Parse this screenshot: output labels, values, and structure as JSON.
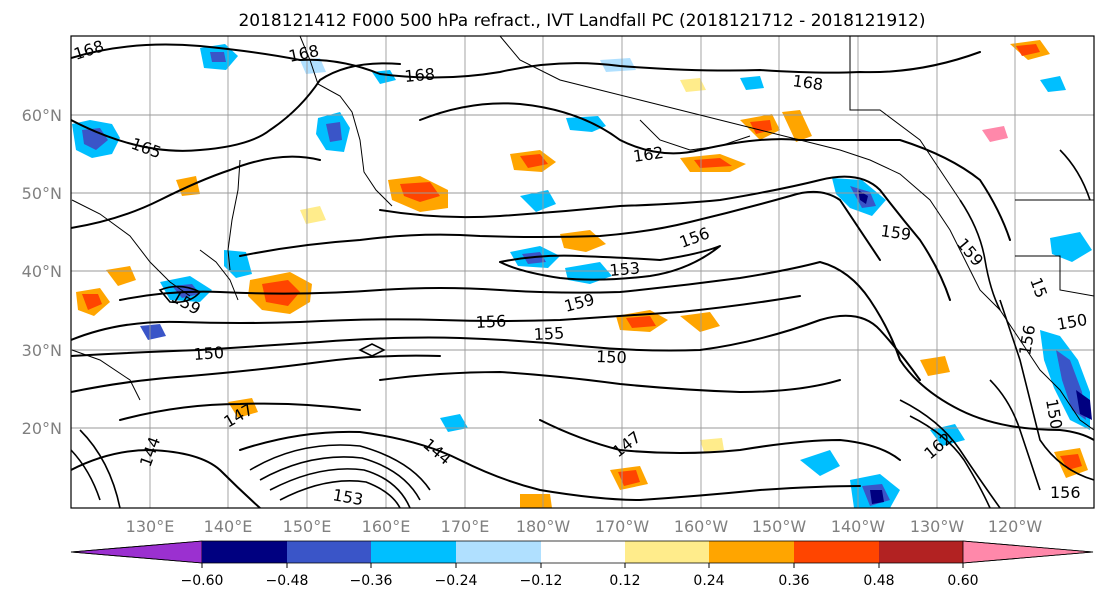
{
  "title": "2018121412 F000 500 hPa refract., IVT Landfall PC (2018121712 - 2018121912)",
  "lat_labels": [
    "60°N",
    "50°N",
    "40°N",
    "30°N",
    "20°N"
  ],
  "lon_labels": [
    "130°E",
    "140°E",
    "150°E",
    "160°E",
    "170°E",
    "180°W",
    "170°W",
    "160°W",
    "150°W",
    "140°W",
    "130°W",
    "120°W"
  ],
  "colorbar": {
    "colors": [
      "#9b30d0",
      "#000080",
      "#3a55c8",
      "#00bfff",
      "#b0e0ff",
      "#ffffff",
      "#ffec8b",
      "#ffa500",
      "#ff4500",
      "#b22222",
      "#ff88aa"
    ],
    "ticks": [
      "−0.60",
      "−0.48",
      "−0.36",
      "−0.24",
      "−0.12",
      "0.12",
      "0.24",
      "0.36",
      "0.48",
      "0.60"
    ]
  },
  "contour_labels": [
    {
      "text": "168"
    },
    {
      "text": "168"
    },
    {
      "text": "168"
    },
    {
      "text": "168"
    },
    {
      "text": "165"
    },
    {
      "text": "162"
    },
    {
      "text": "159"
    },
    {
      "text": "159"
    },
    {
      "text": "156"
    },
    {
      "text": "153"
    },
    {
      "text": "159"
    },
    {
      "text": "156"
    },
    {
      "text": "155"
    },
    {
      "text": "150"
    },
    {
      "text": "150"
    },
    {
      "text": "147"
    },
    {
      "text": "144"
    },
    {
      "text": "147"
    },
    {
      "text": "144"
    },
    {
      "text": "162"
    },
    {
      "text": "156"
    },
    {
      "text": "150"
    },
    {
      "text": "156"
    },
    {
      "text": "150"
    },
    {
      "text": "15"
    },
    {
      "text": "153"
    },
    {
      "text": "159"
    }
  ]
}
